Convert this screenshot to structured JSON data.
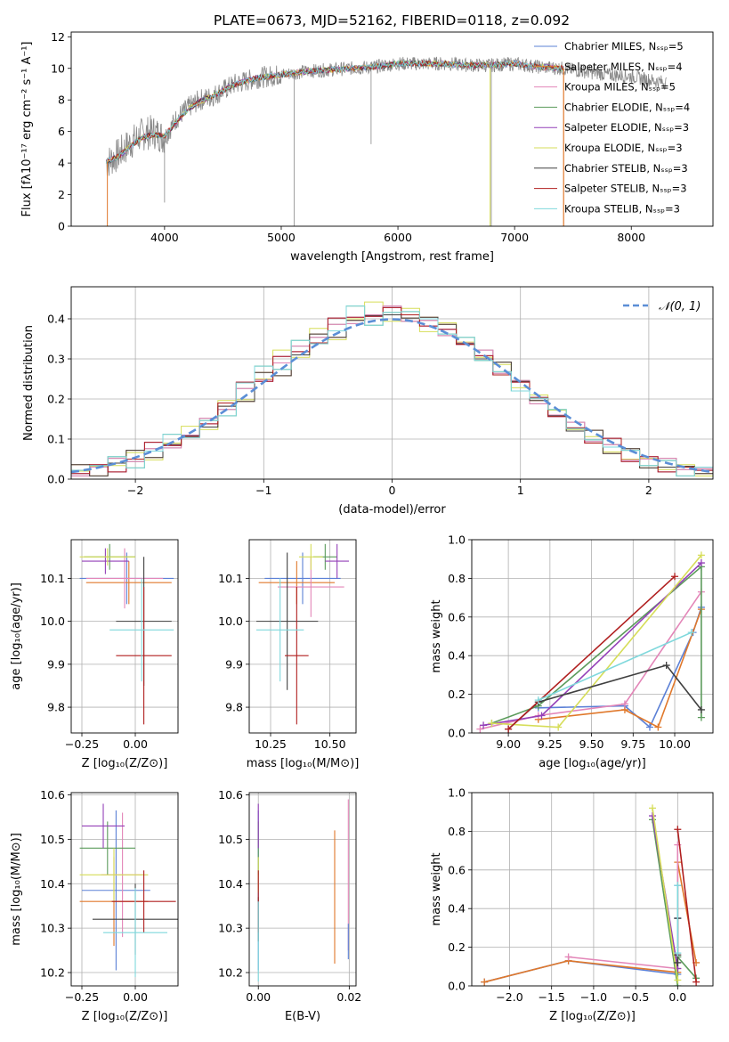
{
  "figure_title": "PLATE=0673, MJD=52162, FIBERID=0118, z=0.092",
  "colors": {
    "Chabrier MILES": "#5b80d6",
    "Salpeter MILES": "#e0782b",
    "Kroupa MILES": "#e386b8",
    "Chabrier ELODIE": "#5b9b5b",
    "Salpeter ELODIE": "#9440b8",
    "Kroupa ELODIE": "#d6dd58",
    "Chabrier STELIB": "#404040",
    "Salpeter STELIB": "#b01f1f",
    "Kroupa STELIB": "#7fd8dc",
    "data": "#888888"
  },
  "chart_data": [
    {
      "id": "spectrum",
      "type": "line",
      "title": "PLATE=0673, MJD=52162, FIBERID=0118, z=0.092",
      "xlabel": "wavelength [Angstrom, rest frame]",
      "ylabel": "Flux [fλ10⁻¹⁷ erg cm⁻² s⁻¹ A⁻¹]",
      "xlim": [
        3200,
        8700
      ],
      "ylim": [
        0,
        12.3
      ],
      "xticks": [
        "4000",
        "5000",
        "6000",
        "7000",
        "8000"
      ],
      "yticks": [
        "0",
        "2",
        "4",
        "6",
        "8",
        "10",
        "12"
      ],
      "grid": false,
      "legend_placement": "right",
      "legend": [
        "Chabrier MILES, Nₛₛₚ=5",
        "Salpeter MILES, Nₛₛₚ=4",
        "Kroupa MILES, Nₛₛₚ=5",
        "Chabrier ELODIE, Nₛₛₚ=4",
        "Salpeter ELODIE, Nₛₛₚ=3",
        "Kroupa ELODIE, Nₛₛₚ=3",
        "Chabrier STELIB, Nₛₛₚ=3",
        "Salpeter STELIB, Nₛₛₚ=3",
        "Kroupa STELIB, Nₛₛₚ=3"
      ],
      "data_envelope": {
        "x": [
          3500,
          3600,
          3700,
          3800,
          3900,
          4000,
          4100,
          4200,
          4300,
          4400,
          4500,
          4600,
          4700,
          4800,
          4900,
          5000,
          5200,
          5400,
          5600,
          5800,
          6000,
          6200,
          6400,
          6600,
          6800,
          7000,
          7200,
          7400,
          7600,
          7800,
          8000,
          8200,
          8300
        ],
        "y": [
          4.0,
          4.5,
          5.2,
          5.8,
          6.0,
          5.6,
          6.8,
          7.5,
          8.0,
          8.2,
          8.6,
          9.0,
          9.2,
          9.4,
          9.5,
          9.6,
          9.8,
          9.9,
          10.0,
          10.1,
          10.3,
          10.3,
          10.3,
          10.2,
          10.2,
          10.3,
          10.1,
          10.0,
          9.8,
          9.6,
          9.5,
          9.2,
          9.1
        ]
      },
      "model_envelope": {
        "x": [
          3500,
          3600,
          3700,
          3800,
          3900,
          4000,
          4100,
          4200,
          4300,
          4400,
          4500,
          4600,
          4700,
          4800,
          4900,
          5000,
          5200,
          5400,
          5600,
          5800,
          6000,
          6200,
          6400,
          6600,
          6800,
          7000,
          7200,
          7420
        ],
        "y": [
          4.1,
          4.4,
          5.0,
          5.6,
          5.8,
          5.7,
          6.6,
          7.4,
          7.9,
          8.2,
          8.6,
          9.0,
          9.2,
          9.4,
          9.5,
          9.6,
          9.8,
          9.9,
          10.0,
          10.1,
          10.3,
          10.3,
          10.3,
          10.2,
          10.2,
          10.3,
          10.1,
          10.0
        ]
      }
    },
    {
      "id": "residuals",
      "type": "histogram",
      "xlabel": "(data-model)/error",
      "ylabel": "Normed distribution",
      "xlim": [
        -2.5,
        2.5
      ],
      "ylim": [
        0,
        0.48
      ],
      "xticks": [
        "−2",
        "−1",
        "0",
        "1",
        "2"
      ],
      "yticks": [
        "0.0",
        "0.1",
        "0.2",
        "0.3",
        "0.4"
      ],
      "grid": true,
      "legend_placement": "top-right",
      "legend": [
        "𝒩(0, 1)"
      ],
      "series": [
        {
          "values": [
            0.02,
            0.03,
            0.04,
            0.05,
            0.07,
            0.09,
            0.11,
            0.14,
            0.18,
            0.22,
            0.26,
            0.29,
            0.32,
            0.36,
            0.38,
            0.4,
            0.41,
            0.42,
            0.4,
            0.39,
            0.37,
            0.34,
            0.31,
            0.27,
            0.24,
            0.2,
            0.16,
            0.13,
            0.1,
            0.08,
            0.06,
            0.05,
            0.04,
            0.03,
            0.02
          ]
        },
        {
          "values": [
            0.03,
            0.02,
            0.04,
            0.06,
            0.06,
            0.08,
            0.12,
            0.13,
            0.17,
            0.2,
            0.26,
            0.27,
            0.31,
            0.35,
            0.36,
            0.39,
            0.42,
            0.41,
            0.39,
            0.41,
            0.38,
            0.35,
            0.3,
            0.28,
            0.25,
            0.19,
            0.17,
            0.12,
            0.11,
            0.07,
            0.07,
            0.04,
            0.03,
            0.02,
            0.02
          ]
        },
        {
          "values": [
            0.02,
            0.03,
            0.03,
            0.05,
            0.08,
            0.09,
            0.1,
            0.15,
            0.19,
            0.23,
            0.25,
            0.3,
            0.33,
            0.34,
            0.39,
            0.41,
            0.4,
            0.44,
            0.41,
            0.37,
            0.38,
            0.33,
            0.32,
            0.26,
            0.23,
            0.21,
            0.15,
            0.14,
            0.09,
            0.09,
            0.05,
            0.05,
            0.03,
            0.03,
            0.01
          ]
        },
        {
          "values": [
            0.01,
            0.04,
            0.05,
            0.04,
            0.07,
            0.1,
            0.11,
            0.14,
            0.17,
            0.24,
            0.27,
            0.28,
            0.34,
            0.35,
            0.37,
            0.42,
            0.39,
            0.41,
            0.43,
            0.4,
            0.35,
            0.36,
            0.29,
            0.28,
            0.22,
            0.19,
            0.18,
            0.12,
            0.11,
            0.08,
            0.06,
            0.04,
            0.04,
            0.02,
            0.03
          ]
        },
        {
          "values": [
            0.02,
            0.02,
            0.04,
            0.06,
            0.06,
            0.09,
            0.12,
            0.13,
            0.19,
            0.21,
            0.25,
            0.31,
            0.31,
            0.37,
            0.36,
            0.4,
            0.43,
            0.4,
            0.42,
            0.38,
            0.39,
            0.33,
            0.31,
            0.28,
            0.24,
            0.21,
            0.16,
            0.13,
            0.1,
            0.08,
            0.05,
            0.04,
            0.03,
            0.03,
            0.02
          ]
        }
      ],
      "normal_curve": {
        "name": "𝒩(0, 1)",
        "mean": 0,
        "sigma": 1
      }
    },
    {
      "id": "age-vs-Z",
      "type": "errorbar",
      "xlabel": "Z [log₁₀(Z/Z⊙)]",
      "ylabel": "age  [log₁₀(age/yr)]",
      "xlim": [
        -0.3,
        0.2
      ],
      "ylim": [
        9.74,
        10.19
      ],
      "xticks": [
        "−0.25",
        "0.00"
      ],
      "yticks": [
        "9.8",
        "9.9",
        "10.0",
        "10.1"
      ],
      "grid": true,
      "points": [
        {
          "x": -0.04,
          "xerr": 0.22,
          "y": 10.1,
          "yerr": 0.06,
          "series": "Chabrier MILES"
        },
        {
          "x": -0.03,
          "xerr": 0.2,
          "y": 10.09,
          "yerr": 0.05,
          "series": "Salpeter MILES"
        },
        {
          "x": -0.05,
          "xerr": 0.18,
          "y": 10.1,
          "yerr": 0.07,
          "series": "Kroupa MILES"
        },
        {
          "x": -0.12,
          "xerr": 0.12,
          "y": 10.15,
          "yerr": 0.03,
          "series": "Chabrier ELODIE"
        },
        {
          "x": -0.14,
          "xerr": 0.11,
          "y": 10.14,
          "yerr": 0.03,
          "series": "Salpeter ELODIE"
        },
        {
          "x": -0.13,
          "xerr": 0.13,
          "y": 10.15,
          "yerr": 0.02,
          "series": "Kroupa ELODIE"
        },
        {
          "x": 0.04,
          "xerr": 0.13,
          "y": 10.0,
          "yerr": 0.15,
          "series": "Chabrier STELIB"
        },
        {
          "x": 0.04,
          "xerr": 0.13,
          "y": 9.92,
          "yerr": 0.16,
          "series": "Salpeter STELIB"
        },
        {
          "x": 0.03,
          "xerr": 0.15,
          "y": 9.98,
          "yerr": 0.12,
          "series": "Kroupa STELIB"
        }
      ]
    },
    {
      "id": "age-vs-mass",
      "type": "errorbar",
      "xlabel": "mass [log₁₀(M/M⊙)]",
      "ylabel": "",
      "xlim": [
        10.16,
        10.61
      ],
      "ylim": [
        9.74,
        10.19
      ],
      "xticks": [
        "10.25",
        "10.50"
      ],
      "yticks": [
        "9.8",
        "9.9",
        "10.0",
        "10.1"
      ],
      "grid": true,
      "points": [
        {
          "x": 10.385,
          "xerr": 0.16,
          "y": 10.1,
          "yerr": 0.06,
          "series": "Chabrier MILES"
        },
        {
          "x": 10.36,
          "xerr": 0.16,
          "y": 10.09,
          "yerr": 0.05,
          "series": "Salpeter MILES"
        },
        {
          "x": 10.42,
          "xerr": 0.14,
          "y": 10.08,
          "yerr": 0.07,
          "series": "Kroupa MILES"
        },
        {
          "x": 10.48,
          "xerr": 0.05,
          "y": 10.15,
          "yerr": 0.03,
          "series": "Chabrier ELODIE"
        },
        {
          "x": 10.53,
          "xerr": 0.05,
          "y": 10.14,
          "yerr": 0.04,
          "series": "Salpeter ELODIE"
        },
        {
          "x": 10.42,
          "xerr": 0.05,
          "y": 10.15,
          "yerr": 0.03,
          "series": "Kroupa ELODIE"
        },
        {
          "x": 10.32,
          "xerr": 0.13,
          "y": 10.0,
          "yerr": 0.16,
          "series": "Chabrier STELIB"
        },
        {
          "x": 10.36,
          "xerr": 0.05,
          "y": 9.92,
          "yerr": 0.16,
          "series": "Salpeter STELIB"
        },
        {
          "x": 10.29,
          "xerr": 0.1,
          "y": 9.98,
          "yerr": 0.12,
          "series": "Kroupa STELIB"
        }
      ]
    },
    {
      "id": "weight-vs-age",
      "type": "line",
      "xlabel": "age  [log₁₀(age/yr)]",
      "ylabel": "mass weight",
      "xlim": [
        8.78,
        10.23
      ],
      "ylim": [
        0,
        1.0
      ],
      "xticks": [
        "9.00",
        "9.25",
        "9.50",
        "9.75",
        "10.00"
      ],
      "yticks": [
        "0.0",
        "0.2",
        "0.4",
        "0.6",
        "0.8",
        "1.0"
      ],
      "grid": true,
      "series": [
        {
          "series": "Chabrier MILES",
          "x": [
            9.18,
            9.7,
            9.85,
            10.11,
            10.16
          ],
          "y": [
            0.13,
            0.14,
            0.03,
            0.52,
            0.65
          ]
        },
        {
          "series": "Salpeter MILES",
          "x": [
            9.18,
            9.7,
            9.9,
            10.16
          ],
          "y": [
            0.07,
            0.12,
            0.03,
            0.64
          ]
        },
        {
          "series": "Kroupa MILES",
          "x": [
            8.83,
            9.18,
            9.7,
            10.16
          ],
          "y": [
            0.02,
            0.09,
            0.15,
            0.73
          ]
        },
        {
          "series": "Chabrier ELODIE",
          "x": [
            8.9,
            9.18,
            10.16,
            10.16
          ],
          "y": [
            0.05,
            0.14,
            0.86,
            0.08
          ]
        },
        {
          "series": "Salpeter ELODIE",
          "x": [
            8.85,
            9.2,
            10.16
          ],
          "y": [
            0.04,
            0.09,
            0.88
          ]
        },
        {
          "series": "Kroupa ELODIE",
          "x": [
            8.9,
            9.3,
            10.16
          ],
          "y": [
            0.05,
            0.03,
            0.92
          ]
        },
        {
          "series": "Chabrier STELIB",
          "x": [
            9.0,
            9.18,
            9.95,
            10.16
          ],
          "y": [
            0.02,
            0.16,
            0.35,
            0.12
          ]
        },
        {
          "series": "Salpeter STELIB",
          "x": [
            9.0,
            10.0
          ],
          "y": [
            0.02,
            0.81
          ]
        },
        {
          "series": "Kroupa STELIB",
          "x": [
            9.18,
            10.1
          ],
          "y": [
            0.17,
            0.52
          ]
        }
      ]
    },
    {
      "id": "mass-vs-Z",
      "type": "errorbar",
      "xlabel": "Z [log₁₀(Z/Z⊙)]",
      "ylabel": "mass [log₁₀(M/M⊙)]",
      "xlim": [
        -0.3,
        0.2
      ],
      "ylim": [
        10.17,
        10.605
      ],
      "xticks": [
        "−0.25",
        "0.00"
      ],
      "yticks": [
        "10.2",
        "10.3",
        "10.4",
        "10.5",
        "10.6"
      ],
      "grid": true,
      "points": [
        {
          "x": -0.09,
          "xerr": 0.16,
          "y": 10.385,
          "yerr": 0.18,
          "series": "Chabrier MILES"
        },
        {
          "x": -0.1,
          "xerr": 0.16,
          "y": 10.36,
          "yerr": 0.1,
          "series": "Salpeter MILES"
        },
        {
          "x": -0.06,
          "xerr": 0.1,
          "y": 10.42,
          "yerr": 0.14,
          "series": "Kroupa MILES"
        },
        {
          "x": -0.13,
          "xerr": 0.13,
          "y": 10.48,
          "yerr": 0.06,
          "series": "Chabrier ELODIE"
        },
        {
          "x": -0.15,
          "xerr": 0.1,
          "y": 10.53,
          "yerr": 0.05,
          "series": "Salpeter ELODIE"
        },
        {
          "x": -0.1,
          "xerr": 0.16,
          "y": 10.42,
          "yerr": 0.06,
          "series": "Kroupa ELODIE"
        },
        {
          "x": 0.0,
          "xerr": 0.2,
          "y": 10.32,
          "yerr": 0.08,
          "series": "Chabrier STELIB"
        },
        {
          "x": 0.04,
          "xerr": 0.15,
          "y": 10.36,
          "yerr": 0.07,
          "series": "Salpeter STELIB"
        },
        {
          "x": 0.0,
          "xerr": 0.15,
          "y": 10.29,
          "yerr": 0.1,
          "series": "Kroupa STELIB"
        }
      ]
    },
    {
      "id": "mass-vs-EBV",
      "type": "errorbar",
      "xlabel": "E(B-V)",
      "ylabel": "",
      "xlim": [
        -0.002,
        0.0215
      ],
      "ylim": [
        10.17,
        10.605
      ],
      "xticks": [
        "0.00",
        "0.02"
      ],
      "yticks": [
        "10.2",
        "10.3",
        "10.4",
        "10.5",
        "10.6"
      ],
      "grid": true,
      "points": [
        {
          "x": 0.0,
          "y": 10.385,
          "yerr": 0.18,
          "series": "Chabrier MILES"
        },
        {
          "x": 0.0168,
          "y": 10.37,
          "yerr": 0.15,
          "series": "Salpeter MILES"
        },
        {
          "x": 0.0198,
          "y": 10.42,
          "yerr": 0.17,
          "series": "Kroupa MILES"
        },
        {
          "x": 0.0,
          "y": 10.48,
          "yerr": 0.06,
          "series": "Chabrier ELODIE"
        },
        {
          "x": 0.0,
          "y": 10.53,
          "yerr": 0.05,
          "series": "Salpeter ELODIE"
        },
        {
          "x": 0.0,
          "y": 10.42,
          "yerr": 0.04,
          "series": "Kroupa ELODIE"
        },
        {
          "x": 0.0,
          "y": 10.32,
          "yerr": 0.05,
          "series": "Chabrier STELIB"
        },
        {
          "x": 0.0,
          "y": 10.36,
          "yerr": 0.07,
          "series": "Salpeter STELIB"
        },
        {
          "x": 0.0,
          "y": 10.27,
          "yerr": 0.09,
          "series": "Kroupa STELIB"
        },
        {
          "x": 0.0198,
          "y": 10.27,
          "yerr": 0.04,
          "series": "Chabrier MILES"
        }
      ]
    },
    {
      "id": "weight-vs-Z",
      "type": "line",
      "xlabel": "Z [log₁₀(Z/Z⊙)]",
      "ylabel": "mass weight",
      "xlim": [
        -2.45,
        0.42
      ],
      "ylim": [
        0,
        1.0
      ],
      "xticks": [
        "−2.0",
        "−1.5",
        "−1.0",
        "−0.5",
        "0.0"
      ],
      "yticks": [
        "0.0",
        "0.2",
        "0.4",
        "0.6",
        "0.8",
        "1.0"
      ],
      "grid": true,
      "series": [
        {
          "series": "Chabrier MILES",
          "x": [
            -2.3,
            -1.3,
            0.0,
            0.0,
            0.0
          ],
          "y": [
            0.02,
            0.13,
            0.06,
            0.52,
            0.35
          ]
        },
        {
          "series": "Salpeter MILES",
          "x": [
            -2.3,
            -1.3,
            0.0,
            0.0,
            0.22
          ],
          "y": [
            0.02,
            0.13,
            0.07,
            0.64,
            0.12
          ]
        },
        {
          "series": "Kroupa MILES",
          "x": [
            -1.3,
            0.0,
            0.0
          ],
          "y": [
            0.15,
            0.09,
            0.73
          ]
        },
        {
          "series": "Chabrier ELODIE",
          "x": [
            -0.3,
            0.0,
            0.0,
            0.22
          ],
          "y": [
            0.86,
            0.0,
            0.15,
            0.04
          ]
        },
        {
          "series": "Salpeter ELODIE",
          "x": [
            -0.3,
            0.0
          ],
          "y": [
            0.88,
            0.09
          ]
        },
        {
          "series": "Kroupa ELODIE",
          "x": [
            -0.3,
            0.0
          ],
          "y": [
            0.92,
            0.03
          ]
        },
        {
          "series": "Chabrier STELIB",
          "x": [
            0.0,
            0.0,
            0.0
          ],
          "y": [
            0.35,
            0.16,
            0.12
          ]
        },
        {
          "series": "Salpeter STELIB",
          "x": [
            0.0,
            0.22
          ],
          "y": [
            0.81,
            0.02
          ]
        },
        {
          "series": "Kroupa STELIB",
          "x": [
            0.0,
            0.0
          ],
          "y": [
            0.52,
            0.17
          ]
        }
      ]
    }
  ]
}
